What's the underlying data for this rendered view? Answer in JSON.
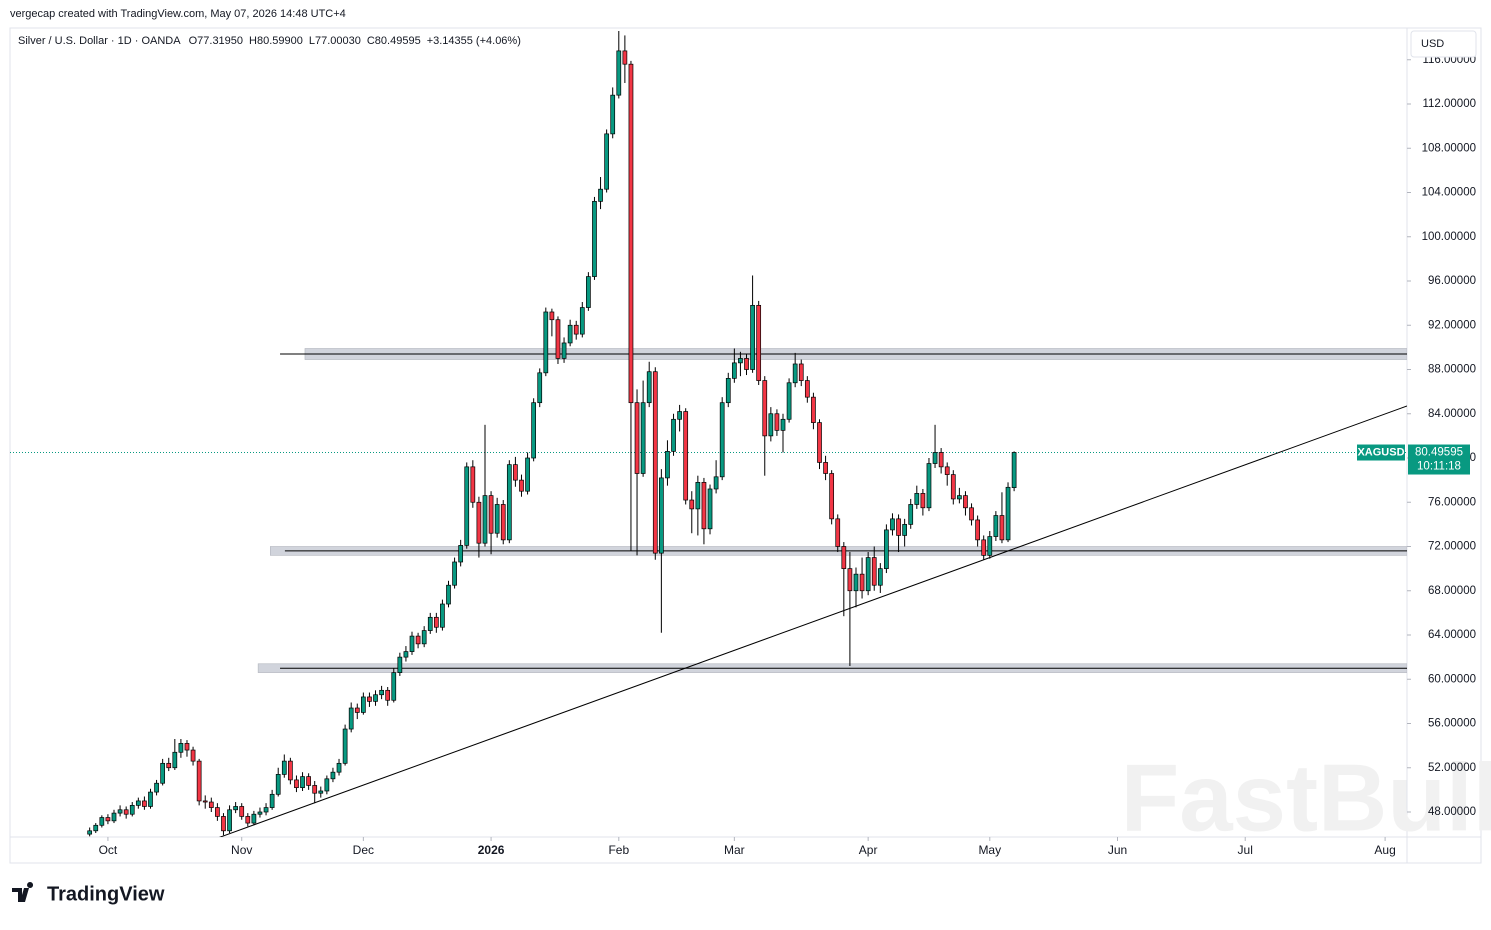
{
  "header": {
    "credit": "vergecap created with TradingView.com, May 07, 2026 14:48 UTC+4",
    "logo": "TradingView",
    "watermark": "FastBull"
  },
  "chart_data": {
    "type": "candlestick",
    "title": "Silver / U.S. Dollar · 1D · OANDA",
    "ohlc_text": [
      "O77.31950",
      "H80.59900",
      "L77.00030",
      "C80.49595",
      "+3.14355 (+4.06%)"
    ],
    "currency": "USD",
    "symbol": "XAGUSD",
    "countdown": "10:11:18",
    "last_price": 80.49595,
    "up_color": "#089981",
    "down_color": "#f23645",
    "xlim": [
      -13.1,
      216.6
    ],
    "ylim": [
      45.74,
      118.69
    ],
    "xticks": [
      {
        "value": 3,
        "label": "Oct"
      },
      {
        "value": 25,
        "label": "Nov"
      },
      {
        "value": 45,
        "label": "Dec"
      },
      {
        "value": 66,
        "label": "2026"
      },
      {
        "value": 87,
        "label": "Feb"
      },
      {
        "value": 106,
        "label": "Mar"
      },
      {
        "value": 128,
        "label": "Apr"
      },
      {
        "value": 148,
        "label": "May"
      },
      {
        "value": 169,
        "label": "Jun"
      },
      {
        "value": 190,
        "label": "Jul"
      },
      {
        "value": 213,
        "label": "Aug"
      }
    ],
    "yticks": [
      {
        "value": 48,
        "label": "48.00000"
      },
      {
        "value": 52,
        "label": "52.00000"
      },
      {
        "value": 56,
        "label": "56.00000"
      },
      {
        "value": 60,
        "label": "60.00000"
      },
      {
        "value": 64,
        "label": "64.00000"
      },
      {
        "value": 68,
        "label": "68.00000"
      },
      {
        "value": 72,
        "label": "72.00000"
      },
      {
        "value": 76,
        "label": "76.00000"
      },
      {
        "value": 80,
        "label": "80.00000"
      },
      {
        "value": 84,
        "label": "84.00000"
      },
      {
        "value": 88,
        "label": "88.00000"
      },
      {
        "value": 92,
        "label": "92.00000"
      },
      {
        "value": 96,
        "label": "96.00000"
      },
      {
        "value": 100,
        "label": "100.00000"
      },
      {
        "value": 104,
        "label": "104.00000"
      },
      {
        "value": 108,
        "label": "108.00000"
      },
      {
        "value": 112,
        "label": "112.00000"
      },
      {
        "value": 116,
        "label": "116.00000"
      }
    ],
    "zones": [
      {
        "low": 88.9,
        "high": 89.9,
        "start": 35.4,
        "line_start": 31.3
      },
      {
        "low": 71.2,
        "high": 72.0,
        "start": 29.7,
        "line_start": 32.1
      },
      {
        "low": 60.6,
        "high": 61.4,
        "start": 27.7,
        "line_start": 31.3
      }
    ],
    "trendline": {
      "x": [
        21.3,
        216.6
      ],
      "y": [
        45.7,
        84.7
      ]
    },
    "candles": [
      [
        46.0,
        46.6,
        45.8,
        46.3
      ],
      [
        46.3,
        47.0,
        46.1,
        46.8
      ],
      [
        46.8,
        47.7,
        46.6,
        47.5
      ],
      [
        47.5,
        47.8,
        46.9,
        47.2
      ],
      [
        47.2,
        48.2,
        47.0,
        47.9
      ],
      [
        47.9,
        48.6,
        47.6,
        48.2
      ],
      [
        48.2,
        48.5,
        47.4,
        47.8
      ],
      [
        47.8,
        48.9,
        47.6,
        48.6
      ],
      [
        48.6,
        49.3,
        48.3,
        49.0
      ],
      [
        49.0,
        49.4,
        48.2,
        48.5
      ],
      [
        48.5,
        50.1,
        48.3,
        49.8
      ],
      [
        49.8,
        50.9,
        49.5,
        50.6
      ],
      [
        50.6,
        52.8,
        50.4,
        52.4
      ],
      [
        52.4,
        52.9,
        51.7,
        52.0
      ],
      [
        52.0,
        54.6,
        51.8,
        53.4
      ],
      [
        53.4,
        54.6,
        52.9,
        54.2
      ],
      [
        54.2,
        54.5,
        53.0,
        53.6
      ],
      [
        53.6,
        53.9,
        52.2,
        52.6
      ],
      [
        52.6,
        52.8,
        48.6,
        49.0
      ],
      [
        49.0,
        49.5,
        48.3,
        48.9
      ],
      [
        48.9,
        49.3,
        48.0,
        48.4
      ],
      [
        48.4,
        48.8,
        47.2,
        47.6
      ],
      [
        47.6,
        47.9,
        45.9,
        46.3
      ],
      [
        46.3,
        48.6,
        46.1,
        48.2
      ],
      [
        48.2,
        48.9,
        47.9,
        48.5
      ],
      [
        48.5,
        48.8,
        47.3,
        47.6
      ],
      [
        47.6,
        47.9,
        46.7,
        47.0
      ],
      [
        47.0,
        48.1,
        46.8,
        47.8
      ],
      [
        47.8,
        48.4,
        47.5,
        48.0
      ],
      [
        48.0,
        48.8,
        47.7,
        48.4
      ],
      [
        48.4,
        50.0,
        48.2,
        49.6
      ],
      [
        49.6,
        52.0,
        49.4,
        51.4
      ],
      [
        51.4,
        53.2,
        51.1,
        52.6
      ],
      [
        52.6,
        52.9,
        50.5,
        50.9
      ],
      [
        50.9,
        51.3,
        49.8,
        50.2
      ],
      [
        50.2,
        51.6,
        49.9,
        51.2
      ],
      [
        51.2,
        51.5,
        50.0,
        50.4
      ],
      [
        50.4,
        50.8,
        48.8,
        49.7
      ],
      [
        49.7,
        50.3,
        49.3,
        49.9
      ],
      [
        49.9,
        51.3,
        49.6,
        51.0
      ],
      [
        51.0,
        52.0,
        50.7,
        51.6
      ],
      [
        51.6,
        52.8,
        51.3,
        52.4
      ],
      [
        52.4,
        55.9,
        52.2,
        55.5
      ],
      [
        55.5,
        57.9,
        55.2,
        57.4
      ],
      [
        57.4,
        57.8,
        56.4,
        57.0
      ],
      [
        57.0,
        58.8,
        56.8,
        58.4
      ],
      [
        58.4,
        58.8,
        57.5,
        58.0
      ],
      [
        58.0,
        59.0,
        57.6,
        58.6
      ],
      [
        58.6,
        59.4,
        58.2,
        59.0
      ],
      [
        59.0,
        59.3,
        57.6,
        58.1
      ],
      [
        58.1,
        61.0,
        57.9,
        60.6
      ],
      [
        60.6,
        62.4,
        60.3,
        62.0
      ],
      [
        62.0,
        63.0,
        61.6,
        62.5
      ],
      [
        62.5,
        64.3,
        62.2,
        63.9
      ],
      [
        63.9,
        64.2,
        62.8,
        63.2
      ],
      [
        63.2,
        64.8,
        62.9,
        64.4
      ],
      [
        64.4,
        66.0,
        64.1,
        65.6
      ],
      [
        65.6,
        66.0,
        64.2,
        64.7
      ],
      [
        64.7,
        67.2,
        64.4,
        66.8
      ],
      [
        66.8,
        68.9,
        66.5,
        68.5
      ],
      [
        68.5,
        71.0,
        68.2,
        70.6
      ],
      [
        70.6,
        72.6,
        70.2,
        72.1
      ],
      [
        72.1,
        79.6,
        71.8,
        79.2
      ],
      [
        79.2,
        79.8,
        75.5,
        76.0
      ],
      [
        76.0,
        76.5,
        71.0,
        72.3
      ],
      [
        72.3,
        83.0,
        72.0,
        76.6
      ],
      [
        76.6,
        77.0,
        71.3,
        73.2
      ],
      [
        73.2,
        76.4,
        72.8,
        75.8
      ],
      [
        75.8,
        76.2,
        72.2,
        72.6
      ],
      [
        72.6,
        79.8,
        72.3,
        79.4
      ],
      [
        79.4,
        80.1,
        77.4,
        78.0
      ],
      [
        78.0,
        78.5,
        76.5,
        77.0
      ],
      [
        77.0,
        80.5,
        76.7,
        80.0
      ],
      [
        80.0,
        85.4,
        79.7,
        85.0
      ],
      [
        85.0,
        88.1,
        84.6,
        87.7
      ],
      [
        87.7,
        93.6,
        87.4,
        93.2
      ],
      [
        93.2,
        93.5,
        91.0,
        92.5
      ],
      [
        92.5,
        92.8,
        88.5,
        89.0
      ],
      [
        89.0,
        90.9,
        88.6,
        90.4
      ],
      [
        90.4,
        92.5,
        90.1,
        92.0
      ],
      [
        92.0,
        92.4,
        90.7,
        91.2
      ],
      [
        91.2,
        94.1,
        90.9,
        93.6
      ],
      [
        93.6,
        96.8,
        93.3,
        96.4
      ],
      [
        96.4,
        103.6,
        96.1,
        103.2
      ],
      [
        103.2,
        105.4,
        102.5,
        104.3
      ],
      [
        104.3,
        109.7,
        104.0,
        109.3
      ],
      [
        109.3,
        113.5,
        108.9,
        112.8
      ],
      [
        112.8,
        118.6,
        112.5,
        116.8
      ],
      [
        116.8,
        118.2,
        113.9,
        115.6
      ],
      [
        115.6,
        115.9,
        71.6,
        85.0
      ],
      [
        85.0,
        86.2,
        71.2,
        78.6
      ],
      [
        78.6,
        87.0,
        78.3,
        85.0
      ],
      [
        85.0,
        88.7,
        84.6,
        87.8
      ],
      [
        87.8,
        88.2,
        70.8,
        71.4
      ],
      [
        71.4,
        79.0,
        64.2,
        78.2
      ],
      [
        78.2,
        81.6,
        77.5,
        80.6
      ],
      [
        80.6,
        84.0,
        80.2,
        83.5
      ],
      [
        83.5,
        84.8,
        82.4,
        84.2
      ],
      [
        84.2,
        84.5,
        75.8,
        76.2
      ],
      [
        76.2,
        77.0,
        73.2,
        75.4
      ],
      [
        75.4,
        78.4,
        73.0,
        77.8
      ],
      [
        77.8,
        78.2,
        72.2,
        73.6
      ],
      [
        73.6,
        77.6,
        73.1,
        77.2
      ],
      [
        77.2,
        79.8,
        76.8,
        78.3
      ],
      [
        78.3,
        85.5,
        78.0,
        85.0
      ],
      [
        85.0,
        87.7,
        84.6,
        87.2
      ],
      [
        87.2,
        89.9,
        86.8,
        88.6
      ],
      [
        88.6,
        89.6,
        87.4,
        89.0
      ],
      [
        89.0,
        89.4,
        87.5,
        88.0
      ],
      [
        88.0,
        96.5,
        87.7,
        93.8
      ],
      [
        93.8,
        94.2,
        86.6,
        87.0
      ],
      [
        87.0,
        87.4,
        78.4,
        82.0
      ],
      [
        82.0,
        84.6,
        81.5,
        84.0
      ],
      [
        84.0,
        84.4,
        82.0,
        82.5
      ],
      [
        82.5,
        84.0,
        80.5,
        83.5
      ],
      [
        83.5,
        87.2,
        83.2,
        86.8
      ],
      [
        86.8,
        89.5,
        86.4,
        88.5
      ],
      [
        88.5,
        88.9,
        86.5,
        87.0
      ],
      [
        87.0,
        87.4,
        85.0,
        85.5
      ],
      [
        85.5,
        85.9,
        82.6,
        83.2
      ],
      [
        83.2,
        83.5,
        79.0,
        79.6
      ],
      [
        79.6,
        80.2,
        78.0,
        78.6
      ],
      [
        78.6,
        78.9,
        74.0,
        74.5
      ],
      [
        74.5,
        74.9,
        71.5,
        72.0
      ],
      [
        72.0,
        72.4,
        65.7,
        70.0
      ],
      [
        70.0,
        71.5,
        61.2,
        68.0
      ],
      [
        68.0,
        70.1,
        66.5,
        69.5
      ],
      [
        69.5,
        71.0,
        67.3,
        68.0
      ],
      [
        68.0,
        71.5,
        67.6,
        71.0
      ],
      [
        71.0,
        72.0,
        68.0,
        68.5
      ],
      [
        68.5,
        70.5,
        67.8,
        70.0
      ],
      [
        70.0,
        74.0,
        69.6,
        73.5
      ],
      [
        73.5,
        75.0,
        73.0,
        74.5
      ],
      [
        74.5,
        74.9,
        71.5,
        73.0
      ],
      [
        73.0,
        74.5,
        72.0,
        74.0
      ],
      [
        74.0,
        76.3,
        73.6,
        75.8
      ],
      [
        75.8,
        77.5,
        75.4,
        76.8
      ],
      [
        76.8,
        77.2,
        74.8,
        75.5
      ],
      [
        75.5,
        80.0,
        75.2,
        79.5
      ],
      [
        79.5,
        83.0,
        79.1,
        80.5
      ],
      [
        80.5,
        80.9,
        78.6,
        79.2
      ],
      [
        79.2,
        79.6,
        77.5,
        78.5
      ],
      [
        78.5,
        78.9,
        75.8,
        76.3
      ],
      [
        76.3,
        77.3,
        75.9,
        76.6
      ],
      [
        76.6,
        77.0,
        74.8,
        75.5
      ],
      [
        75.5,
        75.9,
        73.9,
        74.4
      ],
      [
        74.4,
        74.8,
        72.0,
        72.6
      ],
      [
        72.6,
        73.0,
        70.8,
        71.2
      ],
      [
        71.2,
        73.4,
        70.9,
        72.9
      ],
      [
        72.9,
        75.2,
        72.5,
        74.8
      ],
      [
        74.8,
        76.9,
        72.3,
        72.6
      ],
      [
        72.6,
        77.8,
        72.4,
        77.3524
      ],
      [
        77.3195,
        80.599,
        77.0003,
        80.49595
      ]
    ]
  }
}
